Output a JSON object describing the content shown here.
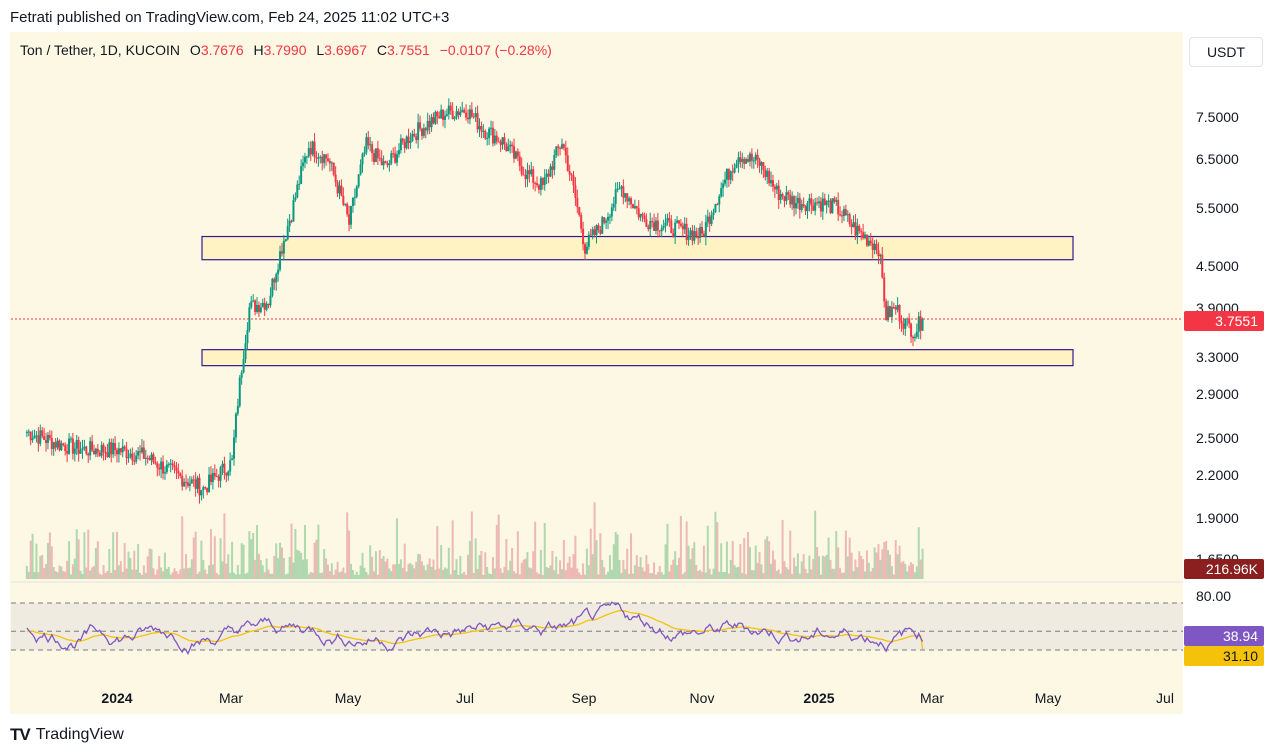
{
  "header": {
    "publisher_text": "Fetrati published on TradingView.com, Feb 24, 2025 11:02 UTC+3"
  },
  "legend": {
    "symbol": "Ton / Tether, 1D, KUCOIN",
    "open_label": "O",
    "open": "3.7676",
    "high_label": "H",
    "high": "3.7990",
    "low_label": "L",
    "low": "3.6967",
    "close_label": "C",
    "close": "3.7551",
    "change": "−0.0107 (−0.28%)"
  },
  "currency_button": "USDT",
  "colors": {
    "up": "#089981",
    "down": "#f23645",
    "rsi": "#7e57c2",
    "rsi_ma": "#f5c20b",
    "zone_border": "#311b92",
    "zone_fill": "#fff3c4",
    "volume_tag": "#8b1f1f",
    "price_tag": "#f23645"
  },
  "price_axis": {
    "ticks": [
      "7.5000",
      "6.5000",
      "5.5000",
      "4.5000",
      "3.9000",
      "3.3000",
      "2.9000",
      "2.5000",
      "2.2000",
      "1.9000",
      "1.6500"
    ]
  },
  "price_tag": "3.7551",
  "volume_tag": "216.96K",
  "rsi_axis": {
    "upper": "80.00",
    "rsi_value": "38.94",
    "ma_value": "31.10"
  },
  "time_axis": [
    {
      "label": "2024",
      "bold": true
    },
    {
      "label": "Mar",
      "bold": false
    },
    {
      "label": "May",
      "bold": false
    },
    {
      "label": "Jul",
      "bold": false
    },
    {
      "label": "Sep",
      "bold": false
    },
    {
      "label": "Nov",
      "bold": false
    },
    {
      "label": "2025",
      "bold": true
    },
    {
      "label": "Mar",
      "bold": false
    },
    {
      "label": "May",
      "bold": false
    },
    {
      "label": "Jul",
      "bold": false
    }
  ],
  "footer": {
    "brand": "TradingView"
  },
  "chart_data": {
    "type": "candlestick",
    "title": "Ton / Tether, 1D, KUCOIN",
    "x": [
      "2023-11-15",
      "2023-12-01",
      "2023-12-15",
      "2024-01-01",
      "2024-01-15",
      "2024-02-01",
      "2024-02-15",
      "2024-03-01",
      "2024-03-10",
      "2024-03-20",
      "2024-04-01",
      "2024-04-10",
      "2024-04-20",
      "2024-05-01",
      "2024-05-10",
      "2024-05-20",
      "2024-06-01",
      "2024-06-10",
      "2024-06-20",
      "2024-07-01",
      "2024-07-10",
      "2024-07-20",
      "2024-08-01",
      "2024-08-10",
      "2024-08-20",
      "2024-09-01",
      "2024-09-10",
      "2024-09-20",
      "2024-10-01",
      "2024-10-10",
      "2024-10-20",
      "2024-11-01",
      "2024-11-10",
      "2024-11-20",
      "2024-12-01",
      "2024-12-10",
      "2024-12-20",
      "2025-01-01",
      "2025-01-10",
      "2025-01-20",
      "2025-02-01",
      "2025-02-05",
      "2025-02-10",
      "2025-02-15",
      "2025-02-20",
      "2025-02-24"
    ],
    "close": [
      2.55,
      2.45,
      2.4,
      2.4,
      2.35,
      2.2,
      2.1,
      2.3,
      3.9,
      4.0,
      5.4,
      6.8,
      6.5,
      5.2,
      6.8,
      6.3,
      7.0,
      7.3,
      7.6,
      7.7,
      7.2,
      6.9,
      6.2,
      5.9,
      6.9,
      4.8,
      5.2,
      5.9,
      5.3,
      5.2,
      5.1,
      5.0,
      5.8,
      6.6,
      6.4,
      5.8,
      5.6,
      5.6,
      5.5,
      5.1,
      4.8,
      3.8,
      3.9,
      3.7,
      3.6,
      3.7551
    ],
    "annotations": [
      {
        "type": "zone",
        "y_range": [
          4.6,
          4.98
        ]
      },
      {
        "type": "zone",
        "y_range": [
          3.2,
          3.38
        ]
      }
    ],
    "rsi": {
      "upper_band": 80.0,
      "lower_band": 30.0,
      "middle_band": 50.0,
      "last_rsi": 38.94,
      "last_ma": 31.1
    },
    "volume_last": "216.96K"
  }
}
